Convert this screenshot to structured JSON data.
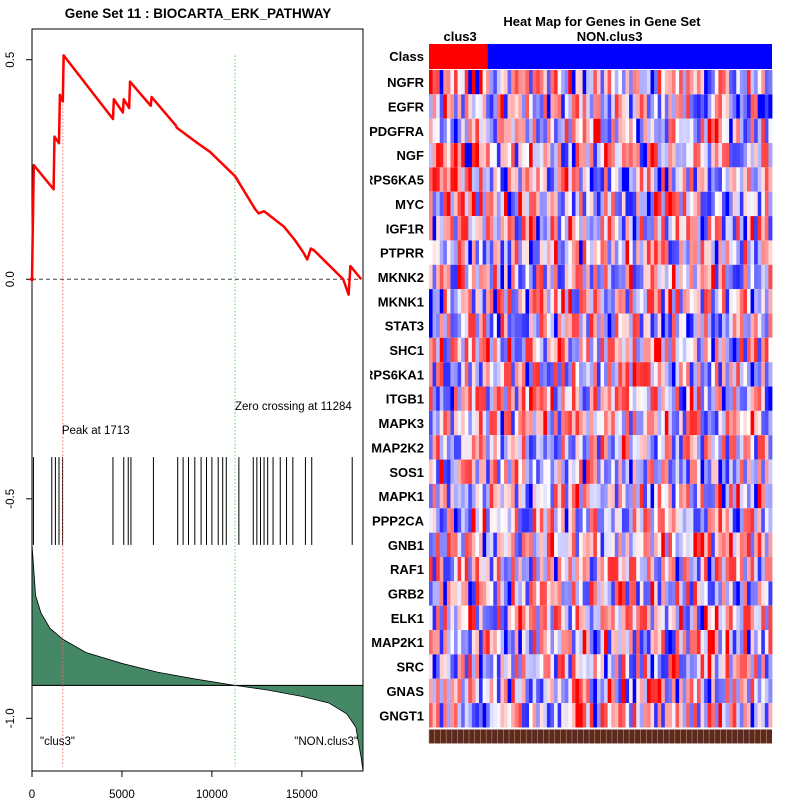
{
  "chart_data": [
    {
      "type": "line",
      "title": "Gene Set  11 : BIOCARTA_ERK_PATHWAY",
      "xlim": [
        0,
        18400
      ],
      "ylim": [
        -1.12,
        0.57
      ],
      "x_ticks": [
        0,
        5000,
        10000,
        15000
      ],
      "x_tick_labels": [
        "0",
        "5000",
        "10000",
        "15000"
      ],
      "y_ticks": [
        0.5,
        0.0,
        -0.5,
        -1.0
      ],
      "y_tick_labels": [
        "0.5",
        "0.0",
        "-0.5",
        "-1.0"
      ],
      "running_es": {
        "name": "Enrichment score",
        "color": "#ff0000",
        "points": [
          [
            0,
            0.0
          ],
          [
            100,
            0.26
          ],
          [
            1200,
            0.205
          ],
          [
            1250,
            0.325
          ],
          [
            1500,
            0.31
          ],
          [
            1550,
            0.42
          ],
          [
            1713,
            0.405
          ],
          [
            1760,
            0.51
          ],
          [
            4500,
            0.365
          ],
          [
            4550,
            0.41
          ],
          [
            5050,
            0.38
          ],
          [
            5100,
            0.41
          ],
          [
            5400,
            0.39
          ],
          [
            5450,
            0.45
          ],
          [
            6600,
            0.395
          ],
          [
            6650,
            0.415
          ],
          [
            8000,
            0.35
          ],
          [
            8050,
            0.345
          ],
          [
            9200,
            0.31
          ],
          [
            9900,
            0.29
          ],
          [
            10400,
            0.27
          ],
          [
            11284,
            0.235
          ],
          [
            12400,
            0.16
          ],
          [
            12600,
            0.15
          ],
          [
            12900,
            0.155
          ],
          [
            14000,
            0.12
          ],
          [
            14600,
            0.09
          ],
          [
            15100,
            0.06
          ],
          [
            15300,
            0.045
          ],
          [
            15500,
            0.07
          ],
          [
            15700,
            0.065
          ],
          [
            17300,
            0.0
          ],
          [
            17600,
            -0.035
          ],
          [
            17700,
            0.03
          ],
          [
            18300,
            0.0
          ]
        ]
      },
      "baseline_y": 0.0,
      "peak": {
        "x": 1713,
        "label": "Peak at 1713",
        "color": "#ff6666"
      },
      "zero_crossing": {
        "x": 11284,
        "label": "Zero crossing at 11284",
        "color": "#66cc66"
      },
      "hits": [
        80,
        1100,
        1300,
        1500,
        1700,
        4500,
        5100,
        5350,
        5500,
        6750,
        8100,
        8400,
        8700,
        9050,
        9400,
        9700,
        10000,
        10350,
        10600,
        10800,
        11500,
        12300,
        12500,
        12700,
        12900,
        13100,
        13400,
        13800,
        14150,
        14500,
        15200,
        15550,
        17800
      ],
      "hits_range_y": [
        -0.405,
        -0.605
      ],
      "metric": {
        "color": "#448866",
        "baseline_y": -0.925,
        "top_y": -0.605,
        "bottom_y": -1.12,
        "points": [
          [
            0,
            -0.605
          ],
          [
            200,
            -0.72
          ],
          [
            500,
            -0.76
          ],
          [
            1000,
            -0.795
          ],
          [
            1713,
            -0.82
          ],
          [
            3000,
            -0.85
          ],
          [
            5000,
            -0.875
          ],
          [
            7000,
            -0.895
          ],
          [
            9000,
            -0.91
          ],
          [
            11284,
            -0.925
          ],
          [
            13000,
            -0.935
          ],
          [
            15000,
            -0.95
          ],
          [
            16500,
            -0.965
          ],
          [
            17500,
            -0.99
          ],
          [
            18000,
            -1.02
          ],
          [
            18300,
            -1.09
          ],
          [
            18400,
            -1.12
          ]
        ]
      },
      "left_class_label": "\"clus3\"",
      "right_class_label": "\"NON.clus3\""
    },
    {
      "type": "heatmap",
      "title": "Heat Map for Genes in Gene Set",
      "class_row_label": "Class",
      "class_groups": [
        {
          "name": "clus3",
          "fraction": 0.17,
          "color": "#ff0000"
        },
        {
          "name": "NON.clus3",
          "fraction": 0.83,
          "color": "#0000ff"
        }
      ],
      "genes": [
        "NGFR",
        "EGFR",
        "PDGFRA",
        "NGF",
        "RPS6KA5",
        "MYC",
        "IGF1R",
        "PTPRR",
        "MKNK2",
        "MKNK1",
        "STAT3",
        "SHC1",
        "RPS6KA1",
        "ITGB1",
        "MAPK3",
        "MAP2K2",
        "SOS1",
        "MAPK1",
        "PPP2CA",
        "GNB1",
        "RAF1",
        "GRB2",
        "ELK1",
        "MAP2K1",
        "SRC",
        "GNAS",
        "GNGT1"
      ]
    }
  ]
}
